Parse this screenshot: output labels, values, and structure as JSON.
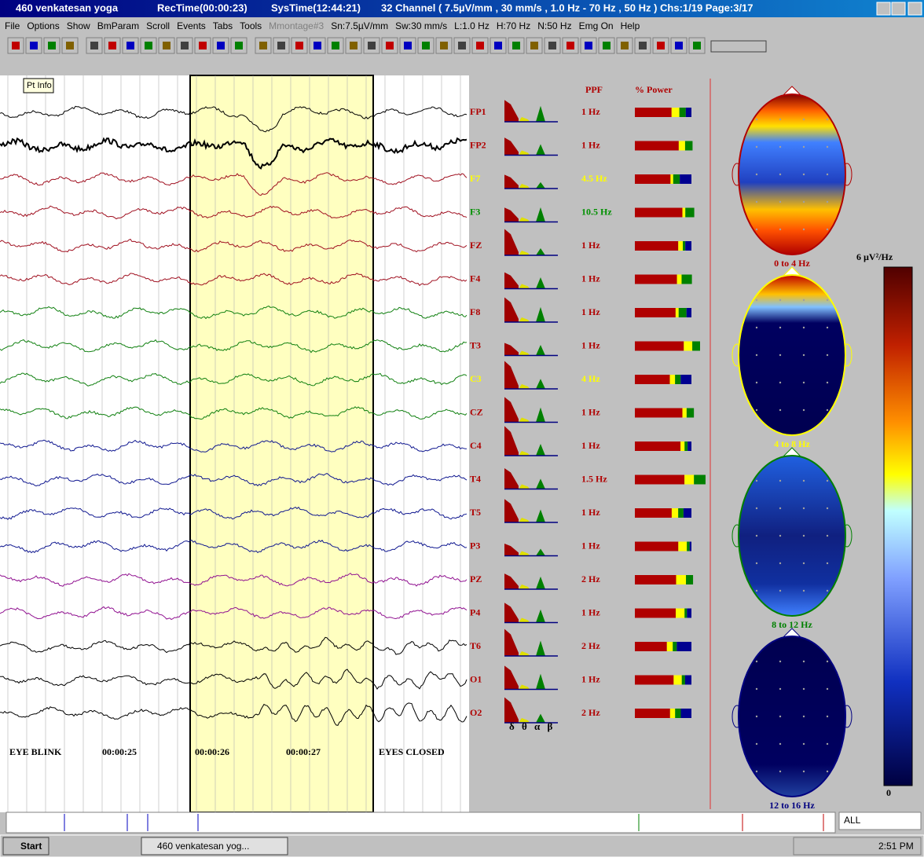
{
  "title_bar": {
    "app": "460  venkatesan yoga",
    "rec_time": "RecTime(00:00:23)",
    "sys_time": "SysTime(12:44:21)",
    "info": "32 Channel  ( 7.5µV/mm , 30  mm/s , 1.0 Hz - 70 Hz , 50 Hz )  Chs:1/19  Page:3/17"
  },
  "menu": [
    "File",
    "Options",
    "Show",
    "BmParam",
    "Scroll",
    "Events",
    "Tabs",
    "Tools",
    "Mmontage#3",
    "Sn:7.5µV/mm",
    "Sw:30 mm/s",
    "L:1.0 Hz",
    "H:70 Hz",
    "N:50 Hz",
    "Emg On",
    "Help"
  ],
  "tooltip": "Pt Info",
  "columns": {
    "ppf": "PPF",
    "power": "% Power"
  },
  "channels": [
    {
      "label": "FP1",
      "ppf": "1 Hz",
      "trace": "#000000",
      "text": "#b00000"
    },
    {
      "label": "FP2",
      "ppf": "1 Hz",
      "trace": "#000000",
      "text": "#b00000"
    },
    {
      "label": "F7",
      "ppf": "4.5 Hz",
      "trace": "#a01020",
      "text": "#ffff00"
    },
    {
      "label": "F3",
      "ppf": "10.5 Hz",
      "trace": "#a01020",
      "text": "#009000"
    },
    {
      "label": "FZ",
      "ppf": "1 Hz",
      "trace": "#a01020",
      "text": "#b00000"
    },
    {
      "label": "F4",
      "ppf": "1 Hz",
      "trace": "#a01020",
      "text": "#b00000"
    },
    {
      "label": "F8",
      "ppf": "1 Hz",
      "trace": "#108010",
      "text": "#b00000"
    },
    {
      "label": "T3",
      "ppf": "1 Hz",
      "trace": "#108010",
      "text": "#b00000"
    },
    {
      "label": "C3",
      "ppf": "4 Hz",
      "trace": "#108010",
      "text": "#ffff00"
    },
    {
      "label": "CZ",
      "ppf": "1 Hz",
      "trace": "#108010",
      "text": "#b00000"
    },
    {
      "label": "C4",
      "ppf": "1 Hz",
      "trace": "#101890",
      "text": "#b00000"
    },
    {
      "label": "T4",
      "ppf": "1.5 Hz",
      "trace": "#101890",
      "text": "#b00000"
    },
    {
      "label": "T5",
      "ppf": "1 Hz",
      "trace": "#101890",
      "text": "#b00000"
    },
    {
      "label": "P3",
      "ppf": "1 Hz",
      "trace": "#101890",
      "text": "#b00000"
    },
    {
      "label": "PZ",
      "ppf": "2 Hz",
      "trace": "#901090",
      "text": "#b00000"
    },
    {
      "label": "P4",
      "ppf": "1 Hz",
      "trace": "#901090",
      "text": "#b00000"
    },
    {
      "label": "T6",
      "ppf": "2 Hz",
      "trace": "#000000",
      "text": "#b00000"
    },
    {
      "label": "O1",
      "ppf": "1 Hz",
      "trace": "#000000",
      "text": "#b00000"
    },
    {
      "label": "O2",
      "ppf": "2 Hz",
      "trace": "#000000",
      "text": "#b00000"
    }
  ],
  "band_symbols": "δ θ α β",
  "markers": [
    "EYE BLINK",
    "00:00:25",
    "00:00:26",
    "00:00:27",
    "EYES CLOSED"
  ],
  "head_maps": [
    {
      "label": "0 to 4 Hz",
      "color": "#b00000"
    },
    {
      "label": "4 to 8 Hz",
      "color": "#ffff00"
    },
    {
      "label": "8 to 12 Hz",
      "color": "#008000"
    },
    {
      "label": "12 to 16 Hz",
      "color": "#000080"
    }
  ],
  "scale": {
    "top": "6 µV²/Hz",
    "bottom": "0"
  },
  "dropdown": "ALL",
  "taskbar": {
    "start": "Start",
    "task": "460  venkatesan yog...",
    "clock": "2:51 PM"
  }
}
